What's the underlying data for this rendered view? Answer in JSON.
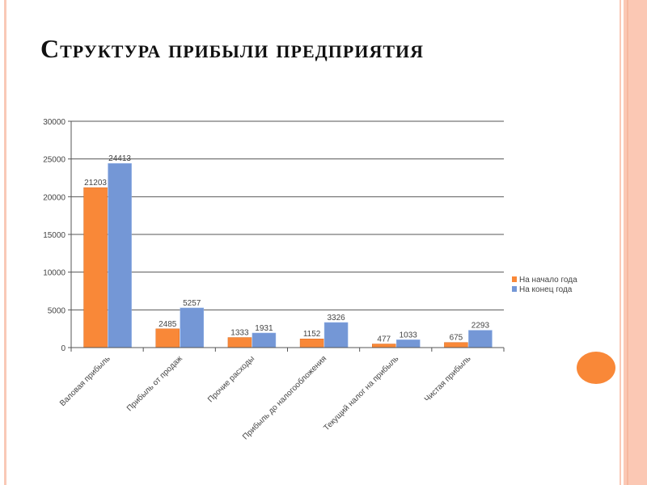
{
  "title": "Структура прибыли предприятия",
  "chart_data": {
    "type": "bar",
    "title": "",
    "xlabel": "",
    "ylabel": "",
    "ylim": [
      0,
      30000
    ],
    "yticks": [
      0,
      5000,
      10000,
      15000,
      20000,
      25000,
      30000
    ],
    "grid": true,
    "legend_position": "right",
    "categories": [
      "Валовая прибыль",
      "Прибыль от продаж",
      "Прочие расходы",
      "Прибыль до налогообложения",
      "Текущий налог на прибыль",
      "Чистая прибыль"
    ],
    "series": [
      {
        "name": "На начало года",
        "color": "#f98838",
        "values": [
          21203,
          2485,
          1333,
          1152,
          477,
          675
        ]
      },
      {
        "name": "На конец года",
        "color": "#7497d6",
        "values": [
          24413,
          5257,
          1931,
          3326,
          1033,
          2293
        ]
      }
    ]
  }
}
